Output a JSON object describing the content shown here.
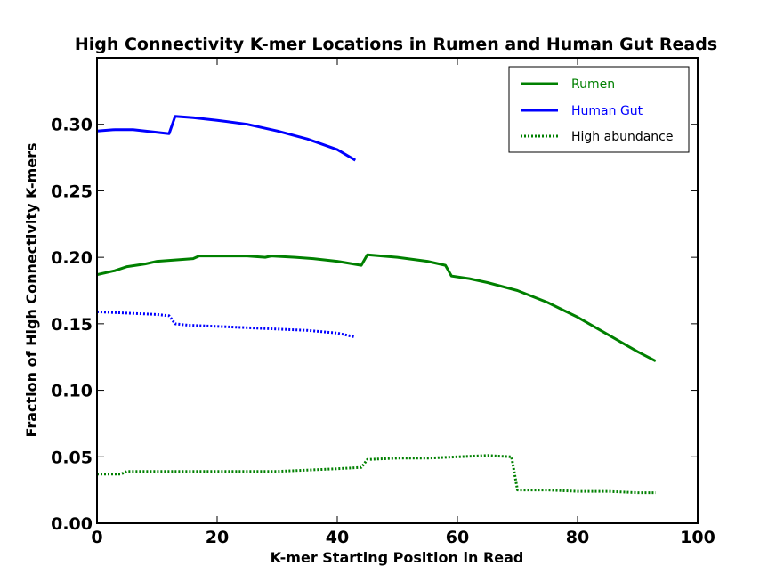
{
  "chart_data": {
    "type": "line",
    "title": "High Connectivity K-mer Locations in Rumen and Human Gut Reads",
    "xlabel": "K-mer Starting Position in Read",
    "ylabel": "Fraction of High Connectivity K-mers",
    "xlim": [
      0,
      100
    ],
    "ylim": [
      0,
      0.35
    ],
    "xticks": [
      0,
      20,
      40,
      60,
      80,
      100
    ],
    "xtick_labels": [
      "0",
      "20",
      "40",
      "60",
      "80",
      "100"
    ],
    "yticks": [
      0,
      0.05,
      0.1,
      0.15,
      0.2,
      0.25,
      0.3
    ],
    "ytick_labels": [
      "0.00",
      "0.05",
      "0.10",
      "0.15",
      "0.20",
      "0.25",
      "0.30"
    ],
    "grid": false,
    "legend_position": "top-right",
    "legend": [
      {
        "label": "Rumen",
        "color": "#008000",
        "style": "solid"
      },
      {
        "label": "Human Gut",
        "color": "#0000ff",
        "style": "solid"
      },
      {
        "label": "High abundance",
        "color": "#008000",
        "style": "dotted"
      }
    ],
    "series": [
      {
        "color": "#008000",
        "style": "solid",
        "points": [
          [
            0,
            0.187
          ],
          [
            3,
            0.19
          ],
          [
            5,
            0.193
          ],
          [
            8,
            0.195
          ],
          [
            10,
            0.197
          ],
          [
            13,
            0.198
          ],
          [
            16,
            0.199
          ],
          [
            17,
            0.201
          ],
          [
            20,
            0.201
          ],
          [
            25,
            0.201
          ],
          [
            28,
            0.2
          ],
          [
            29,
            0.201
          ],
          [
            33,
            0.2
          ],
          [
            36,
            0.199
          ],
          [
            40,
            0.197
          ],
          [
            44,
            0.194
          ],
          [
            45,
            0.202
          ],
          [
            50,
            0.2
          ],
          [
            55,
            0.197
          ],
          [
            58,
            0.194
          ],
          [
            59,
            0.186
          ],
          [
            62,
            0.184
          ],
          [
            65,
            0.181
          ],
          [
            70,
            0.175
          ],
          [
            75,
            0.166
          ],
          [
            80,
            0.155
          ],
          [
            85,
            0.142
          ],
          [
            90,
            0.129
          ],
          [
            93,
            0.122
          ]
        ]
      },
      {
        "color": "#0000ff",
        "style": "solid",
        "points": [
          [
            0,
            0.295
          ],
          [
            3,
            0.296
          ],
          [
            6,
            0.296
          ],
          [
            10,
            0.294
          ],
          [
            12,
            0.293
          ],
          [
            13,
            0.306
          ],
          [
            16,
            0.305
          ],
          [
            20,
            0.303
          ],
          [
            25,
            0.3
          ],
          [
            30,
            0.295
          ],
          [
            35,
            0.289
          ],
          [
            40,
            0.281
          ],
          [
            43,
            0.273
          ]
        ]
      },
      {
        "color": "#0000ff",
        "style": "dotted",
        "points": [
          [
            0,
            0.159
          ],
          [
            5,
            0.158
          ],
          [
            10,
            0.157
          ],
          [
            12,
            0.156
          ],
          [
            13,
            0.15
          ],
          [
            15,
            0.149
          ],
          [
            20,
            0.148
          ],
          [
            25,
            0.147
          ],
          [
            30,
            0.146
          ],
          [
            35,
            0.145
          ],
          [
            40,
            0.143
          ],
          [
            43,
            0.14
          ]
        ]
      },
      {
        "color": "#008000",
        "style": "dotted",
        "points": [
          [
            0,
            0.037
          ],
          [
            4,
            0.037
          ],
          [
            5,
            0.039
          ],
          [
            10,
            0.039
          ],
          [
            20,
            0.039
          ],
          [
            30,
            0.039
          ],
          [
            35,
            0.04
          ],
          [
            40,
            0.041
          ],
          [
            44,
            0.042
          ],
          [
            45,
            0.048
          ],
          [
            50,
            0.049
          ],
          [
            55,
            0.049
          ],
          [
            60,
            0.05
          ],
          [
            65,
            0.051
          ],
          [
            69,
            0.05
          ],
          [
            70,
            0.025
          ],
          [
            75,
            0.025
          ],
          [
            80,
            0.024
          ],
          [
            85,
            0.024
          ],
          [
            90,
            0.023
          ],
          [
            93,
            0.023
          ]
        ]
      }
    ]
  }
}
